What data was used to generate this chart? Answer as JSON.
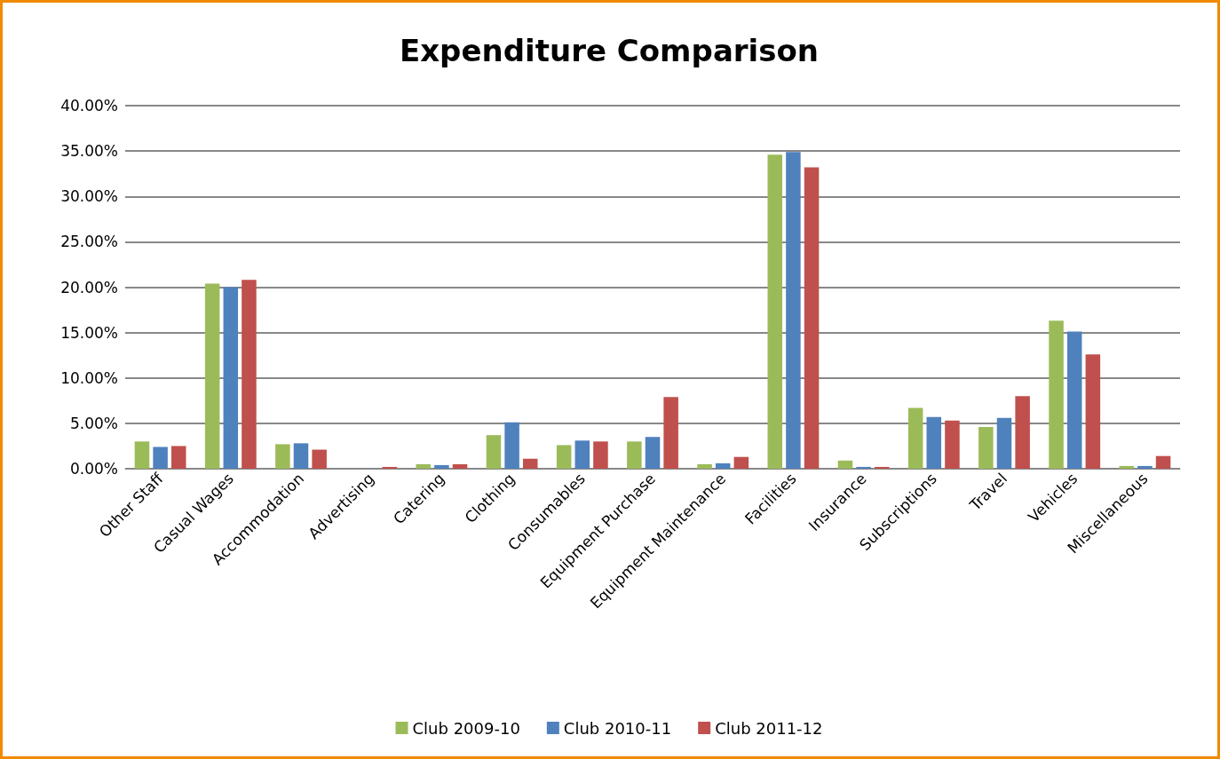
{
  "chart_data": {
    "type": "bar",
    "title": "Expenditure Comparison",
    "categories": [
      "Other Staff",
      "Casual Wages",
      "Accommodation",
      "Advertising",
      "Catering",
      "Clothing",
      "Consumables",
      "Equipment Purchase",
      "Equipment Maintenance",
      "Facilities",
      "Insurance",
      "Subscriptions",
      "Travel",
      "Vehicles",
      "Miscellaneous"
    ],
    "series": [
      {
        "name": "Club 2009-10",
        "color": "#9bbb59",
        "values": [
          3.0,
          20.4,
          2.7,
          0,
          0.5,
          3.7,
          2.6,
          3.0,
          0.5,
          34.6,
          0.9,
          6.7,
          4.6,
          16.3,
          0.3
        ]
      },
      {
        "name": "Club 2010-11",
        "color": "#4f81bd",
        "values": [
          2.4,
          20.0,
          2.8,
          0,
          0.4,
          5.1,
          3.1,
          3.5,
          0.6,
          34.9,
          0.2,
          5.7,
          5.6,
          15.1,
          0.3
        ]
      },
      {
        "name": "Club 2011-12",
        "color": "#c0504d",
        "values": [
          2.5,
          20.8,
          2.1,
          0.2,
          0.5,
          1.1,
          3.0,
          7.9,
          1.3,
          33.2,
          0.2,
          5.3,
          8.0,
          12.6,
          1.4
        ]
      }
    ],
    "ylim": [
      0,
      40
    ],
    "yticks": [
      {
        "value": 0,
        "label": "0.00%"
      },
      {
        "value": 5,
        "label": "5.00%"
      },
      {
        "value": 10,
        "label": "10.00%"
      },
      {
        "value": 15,
        "label": "15.00%"
      },
      {
        "value": 20,
        "label": "20.00%"
      },
      {
        "value": 25,
        "label": "25.00%"
      },
      {
        "value": 30,
        "label": "30.00%"
      },
      {
        "value": 35,
        "label": "35.00%"
      },
      {
        "value": 40,
        "label": "40.00%"
      }
    ],
    "grid": "y",
    "legend": "bottom"
  }
}
